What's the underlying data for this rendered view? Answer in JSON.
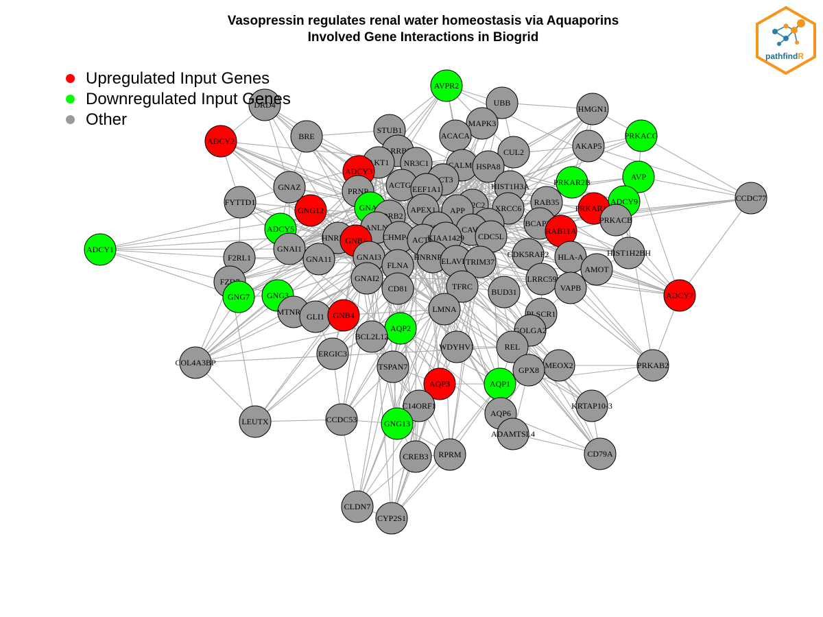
{
  "title": {
    "line1": "Vasopressin regulates renal water homeostasis via Aquaporins",
    "line2": "Involved Gene Interactions in Biogrid"
  },
  "legend": [
    {
      "label": "Upregulated Input Genes",
      "color": "#ff0000"
    },
    {
      "label": "Downregulated Input Genes",
      "color": "#00ff00"
    },
    {
      "label": "Other",
      "color": "#999999"
    }
  ],
  "logo": {
    "text_main": "pathfind",
    "text_accent": "R",
    "border_color": "#f7941d",
    "text_color": "#1f6f8b"
  },
  "colors": {
    "up": "#ff0000",
    "down": "#00ff00",
    "other": "#999999",
    "edge": "#aaaaaa"
  },
  "nodes": [
    {
      "id": "AVPR2",
      "type": "down"
    },
    {
      "id": "UBB",
      "type": "other"
    },
    {
      "id": "HMGN1",
      "type": "other"
    },
    {
      "id": "DRD4",
      "type": "other"
    },
    {
      "id": "MAPK3",
      "type": "other"
    },
    {
      "id": "STUB1",
      "type": "other"
    },
    {
      "id": "ACACA",
      "type": "other"
    },
    {
      "id": "BRE",
      "type": "other"
    },
    {
      "id": "ADCY2",
      "type": "up"
    },
    {
      "id": "PRKACG",
      "type": "down"
    },
    {
      "id": "AKAP5",
      "type": "other"
    },
    {
      "id": "CUL2",
      "type": "other"
    },
    {
      "id": "ARRB2",
      "type": "other"
    },
    {
      "id": "AKT1",
      "type": "other"
    },
    {
      "id": "NR3C1",
      "type": "other"
    },
    {
      "id": "CALM1",
      "type": "other"
    },
    {
      "id": "HSPA8",
      "type": "other"
    },
    {
      "id": "ADCY3",
      "type": "up"
    },
    {
      "id": "AVP",
      "type": "down"
    },
    {
      "id": "CCT3",
      "type": "other"
    },
    {
      "id": "GNAZ",
      "type": "other"
    },
    {
      "id": "ACTG1",
      "type": "other"
    },
    {
      "id": "EEF1A1",
      "type": "other"
    },
    {
      "id": "HIST1H3A",
      "type": "other"
    },
    {
      "id": "PRKAR2B",
      "type": "down"
    },
    {
      "id": "PRNP",
      "type": "other"
    },
    {
      "id": "FYTTD1",
      "type": "other"
    },
    {
      "id": "CCDC77",
      "type": "other"
    },
    {
      "id": "ADCY9",
      "type": "down"
    },
    {
      "id": "GNG12",
      "type": "up"
    },
    {
      "id": "GNAS",
      "type": "down"
    },
    {
      "id": "RAB35",
      "type": "other"
    },
    {
      "id": "APEX1",
      "type": "other"
    },
    {
      "id": "NR2C2",
      "type": "other"
    },
    {
      "id": "XRCC6",
      "type": "other"
    },
    {
      "id": "APP",
      "type": "other"
    },
    {
      "id": "ADRB2",
      "type": "other"
    },
    {
      "id": "PRKAR1A",
      "type": "up"
    },
    {
      "id": "PRKACB",
      "type": "other"
    },
    {
      "id": "ADCY5",
      "type": "down"
    },
    {
      "id": "ANLN",
      "type": "other"
    },
    {
      "id": "ESR2",
      "type": "other"
    },
    {
      "id": "KRAS",
      "type": "other"
    },
    {
      "id": "BCAP31",
      "type": "other"
    },
    {
      "id": "CAV1",
      "type": "other"
    },
    {
      "id": "RAB11A",
      "type": "up"
    },
    {
      "id": "ADCY1",
      "type": "down"
    },
    {
      "id": "HNRNPL",
      "type": "other"
    },
    {
      "id": "GNB1",
      "type": "up"
    },
    {
      "id": "CHMP4B",
      "type": "other"
    },
    {
      "id": "ACTB",
      "type": "other"
    },
    {
      "id": "KIAA1429",
      "type": "other"
    },
    {
      "id": "CDC5L",
      "type": "other"
    },
    {
      "id": "GNAI1",
      "type": "other"
    },
    {
      "id": "GNAI3",
      "type": "other"
    },
    {
      "id": "F2RL1",
      "type": "other"
    },
    {
      "id": "GNA11",
      "type": "other"
    },
    {
      "id": "HNRNPH1",
      "type": "other"
    },
    {
      "id": "CDK5RAP2",
      "type": "other"
    },
    {
      "id": "HIST1H2BH",
      "type": "other"
    },
    {
      "id": "FLNA",
      "type": "other"
    },
    {
      "id": "ELAVL1",
      "type": "other"
    },
    {
      "id": "TRIM37",
      "type": "other"
    },
    {
      "id": "HLA-A",
      "type": "other"
    },
    {
      "id": "AMOT",
      "type": "other"
    },
    {
      "id": "FZD7",
      "type": "other"
    },
    {
      "id": "GNAI2",
      "type": "other"
    },
    {
      "id": "LRRC59",
      "type": "other"
    },
    {
      "id": "VAPB",
      "type": "other"
    },
    {
      "id": "CD81",
      "type": "other"
    },
    {
      "id": "TFRC",
      "type": "other"
    },
    {
      "id": "GNG7",
      "type": "down"
    },
    {
      "id": "GNG3",
      "type": "down"
    },
    {
      "id": "BUD31",
      "type": "other"
    },
    {
      "id": "ADCY7",
      "type": "up"
    },
    {
      "id": "LMNA",
      "type": "other"
    },
    {
      "id": "MTNR1B",
      "type": "other"
    },
    {
      "id": "GLI1",
      "type": "other"
    },
    {
      "id": "GNB4",
      "type": "up"
    },
    {
      "id": "PLSCR1",
      "type": "other"
    },
    {
      "id": "GOLGA2",
      "type": "other"
    },
    {
      "id": "AQP2",
      "type": "down"
    },
    {
      "id": "BCL2L12",
      "type": "other"
    },
    {
      "id": "WDYHV1",
      "type": "other"
    },
    {
      "id": "REL",
      "type": "other"
    },
    {
      "id": "ERGIC3",
      "type": "other"
    },
    {
      "id": "COL4A3BP",
      "type": "other"
    },
    {
      "id": "MEOX2",
      "type": "other"
    },
    {
      "id": "PRKAB2",
      "type": "other"
    },
    {
      "id": "TSPAN7",
      "type": "other"
    },
    {
      "id": "GPX8",
      "type": "other"
    },
    {
      "id": "AQP3",
      "type": "up"
    },
    {
      "id": "AQP1",
      "type": "down"
    },
    {
      "id": "C14ORF1",
      "type": "other"
    },
    {
      "id": "KRTAP10-3",
      "type": "other"
    },
    {
      "id": "AQP6",
      "type": "other"
    },
    {
      "id": "LEUTX",
      "type": "other"
    },
    {
      "id": "CCDC53",
      "type": "other"
    },
    {
      "id": "GNG13",
      "type": "down"
    },
    {
      "id": "ADAMTSL4",
      "type": "other"
    },
    {
      "id": "CREB3",
      "type": "other"
    },
    {
      "id": "RPRM",
      "type": "other"
    },
    {
      "id": "CD79A",
      "type": "other"
    },
    {
      "id": "CLDN7",
      "type": "other"
    },
    {
      "id": "CYP2S1",
      "type": "other"
    }
  ]
}
